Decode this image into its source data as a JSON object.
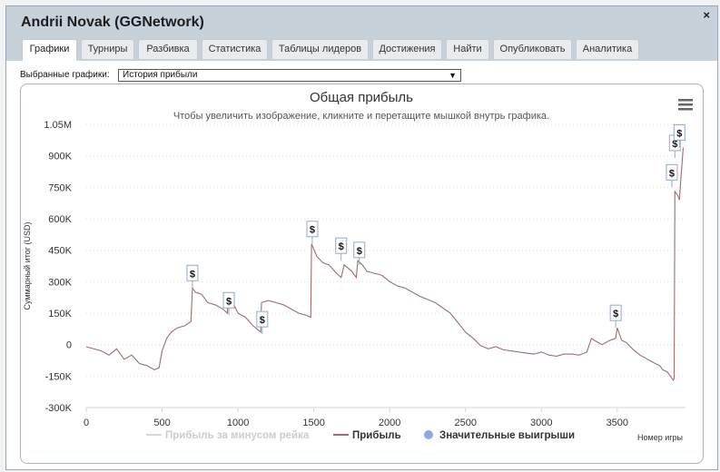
{
  "window": {
    "title": "Andrii Novak (GGNetwork)",
    "close_glyph": "×"
  },
  "tabs": [
    {
      "label": "Графики",
      "active": true
    },
    {
      "label": "Турниры",
      "active": false
    },
    {
      "label": "Разбивка",
      "active": false
    },
    {
      "label": "Статистика",
      "active": false
    },
    {
      "label": "Таблицы лидеров",
      "active": false
    },
    {
      "label": "Достижения",
      "active": false
    },
    {
      "label": "Найти",
      "active": false
    },
    {
      "label": "Опубликовать",
      "active": false
    },
    {
      "label": "Аналитика",
      "active": false
    }
  ],
  "selector": {
    "label": "Выбранные графики:",
    "value": "История прибыли"
  },
  "menu_icon": "hamburger-menu-icon",
  "chart_data": {
    "type": "line",
    "title": "Общая прибыль",
    "subtitle": "Чтобы увеличить изображение, кликните и перетащите мышкой внутрь графика.",
    "xlabel": "Номер игры",
    "ylabel": "Суммарный итог (USD)",
    "xlim": [
      0,
      3950
    ],
    "ylim": [
      -300000,
      1050000
    ],
    "x_ticks": [
      0,
      500,
      1000,
      1500,
      2000,
      2500,
      3000,
      3500
    ],
    "x_tick_labels": [
      "0",
      "500",
      "1000",
      "1500",
      "2000",
      "2500",
      "3000",
      "3500"
    ],
    "y_ticks": [
      -300000,
      -150000,
      0,
      150000,
      300000,
      450000,
      600000,
      750000,
      900000,
      1050000
    ],
    "y_tick_labels": [
      "-300K",
      "-150K",
      "0",
      "150K",
      "300K",
      "450K",
      "600K",
      "750K",
      "900K",
      "1.05M"
    ],
    "grid": true,
    "legend_position": "bottom",
    "series": [
      {
        "name": "Прибыль за минусом рейка",
        "color": "#d8d8d8",
        "values": []
      },
      {
        "name": "Прибыль",
        "color": "#a36b6d",
        "x": [
          0,
          100,
          150,
          200,
          250,
          300,
          350,
          400,
          450,
          480,
          500,
          530,
          560,
          600,
          650,
          690,
          700,
          720,
          760,
          800,
          850,
          900,
          930,
          935,
          960,
          1000,
          1050,
          1100,
          1150,
          1155,
          1200,
          1250,
          1300,
          1350,
          1400,
          1450,
          1480,
          1485,
          1520,
          1560,
          1600,
          1650,
          1680,
          1700,
          1750,
          1780,
          1790,
          1820,
          1850,
          1900,
          1950,
          2000,
          2050,
          2100,
          2200,
          2300,
          2400,
          2500,
          2550,
          2600,
          2650,
          2700,
          2750,
          2800,
          2850,
          2900,
          2950,
          3000,
          3050,
          3100,
          3150,
          3200,
          3250,
          3300,
          3330,
          3350,
          3400,
          3450,
          3490,
          3500,
          3530,
          3560,
          3600,
          3650,
          3700,
          3750,
          3780,
          3800,
          3830,
          3850,
          3870,
          3875,
          3880,
          3900,
          3910,
          3920,
          3925,
          3935
        ],
        "values": [
          -10000,
          -30000,
          -50000,
          -20000,
          -70000,
          -50000,
          -90000,
          -100000,
          -120000,
          -110000,
          -30000,
          30000,
          60000,
          80000,
          90000,
          110000,
          270000,
          250000,
          240000,
          200000,
          190000,
          170000,
          150000,
          220000,
          210000,
          150000,
          130000,
          90000,
          60000,
          200000,
          210000,
          200000,
          190000,
          170000,
          150000,
          140000,
          130000,
          480000,
          420000,
          390000,
          380000,
          340000,
          320000,
          380000,
          350000,
          320000,
          400000,
          380000,
          350000,
          340000,
          330000,
          300000,
          280000,
          270000,
          230000,
          200000,
          150000,
          60000,
          30000,
          -5000,
          -20000,
          -10000,
          -25000,
          -30000,
          -35000,
          -40000,
          -45000,
          -35000,
          -50000,
          -55000,
          -45000,
          -45000,
          -50000,
          -35000,
          30000,
          20000,
          0,
          20000,
          30000,
          80000,
          20000,
          10000,
          -20000,
          -50000,
          -70000,
          -90000,
          -100000,
          -120000,
          -130000,
          -150000,
          -170000,
          -160000,
          730000,
          710000,
          690000,
          800000,
          840000,
          940000
        ]
      },
      {
        "name": "Значительные выигрыши",
        "color": "#91a8d8",
        "marker": "dollar-flag",
        "x": [
          700,
          940,
          1160,
          1490,
          1680,
          1800,
          3490,
          3860,
          3880,
          3910
        ],
        "values": [
          270000,
          140000,
          50000,
          480000,
          400000,
          380000,
          80000,
          750000,
          890000,
          940000
        ]
      }
    ]
  }
}
